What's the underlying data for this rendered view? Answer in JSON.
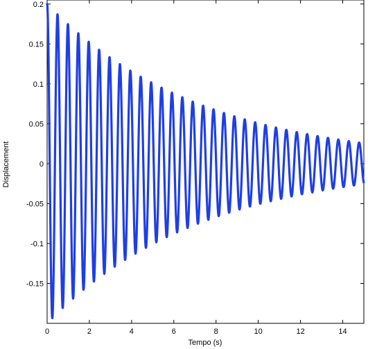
{
  "chart_data": {
    "type": "line",
    "title": "",
    "xlabel": "Tempo (s)",
    "ylabel": "Displacement",
    "xlim": [
      0,
      15
    ],
    "ylim": [
      -0.2,
      0.205
    ],
    "xticks": [
      0,
      2,
      4,
      6,
      8,
      10,
      12,
      14
    ],
    "xtick_labels": [
      "0",
      "2",
      "4",
      "6",
      "8",
      "10",
      "12",
      "14"
    ],
    "yticks": [
      0.2,
      0.15,
      0.1,
      0.05,
      0,
      -0.05,
      -0.1,
      -0.15
    ],
    "ytick_labels": [
      "0.2",
      "0.15",
      "0.1",
      "0.05",
      "0",
      "-0.05",
      "-0.1",
      "-0.15"
    ],
    "grid": false,
    "series": [
      {
        "color": "#1f3ee6",
        "model": "damped_cosine",
        "amplitude": 0.2,
        "decay_rate": 0.137,
        "frequency_hz": 2.03,
        "phase": 0,
        "x": [
          0,
          0.25,
          0.49,
          0.74,
          0.99,
          1.23,
          1.48,
          1.72,
          1.97,
          2.22,
          2.46,
          2.71,
          2.96,
          3.2,
          3.45,
          3.69,
          3.94,
          4.19,
          4.43,
          4.68,
          4.93,
          5.17,
          5.42,
          5.67,
          5.91,
          6.16,
          6.4,
          6.65,
          6.9,
          7.14,
          7.39,
          7.64,
          7.88,
          8.13,
          8.37,
          8.62,
          8.87,
          9.11,
          9.36,
          9.61,
          9.85,
          10.1,
          10.34,
          10.59,
          10.84,
          11.08,
          11.33,
          11.58,
          11.82,
          12.07,
          12.32,
          12.56,
          12.81,
          13.05,
          13.3,
          13.55,
          13.79,
          14.04,
          14.29,
          14.53,
          14.78
        ],
        "y": [
          0.2,
          -0.193,
          0.187,
          -0.18,
          0.174,
          -0.168,
          0.162,
          -0.157,
          0.152,
          -0.147,
          0.142,
          -0.137,
          0.133,
          -0.128,
          0.124,
          -0.12,
          0.116,
          -0.112,
          0.108,
          -0.105,
          0.101,
          -0.098,
          0.095,
          -0.091,
          0.088,
          -0.085,
          0.083,
          -0.08,
          0.077,
          -0.075,
          0.072,
          -0.07,
          0.068,
          -0.065,
          0.063,
          -0.061,
          0.059,
          -0.057,
          0.055,
          -0.053,
          0.051,
          -0.05,
          0.048,
          -0.047,
          0.045,
          -0.044,
          0.042,
          -0.041,
          0.039,
          -0.038,
          0.037,
          -0.036,
          0.034,
          -0.033,
          0.032,
          -0.031,
          0.03,
          -0.029,
          0.028,
          -0.027,
          0.026
        ]
      }
    ]
  }
}
